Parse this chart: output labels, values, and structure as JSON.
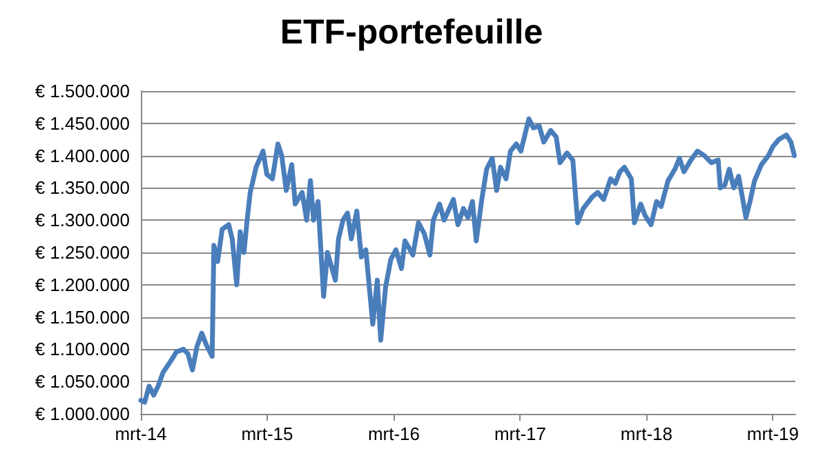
{
  "chart_data": {
    "type": "line",
    "title": "ETF-portefeuille",
    "x": [
      "2014-03-01",
      "2014-03-12",
      "2014-03-25",
      "2014-04-07",
      "2014-04-20",
      "2014-05-04",
      "2014-05-23",
      "2014-06-12",
      "2014-07-02",
      "2014-07-15",
      "2014-07-28",
      "2014-08-10",
      "2014-08-24",
      "2014-09-06",
      "2014-09-23",
      "2014-09-28",
      "2014-10-09",
      "2014-10-22",
      "2014-11-10",
      "2014-11-20",
      "2014-12-03",
      "2014-12-13",
      "2014-12-24",
      "2015-01-02",
      "2015-01-11",
      "2015-01-28",
      "2015-02-17",
      "2015-02-28",
      "2015-03-16",
      "2015-04-01",
      "2015-04-12",
      "2015-04-25",
      "2015-05-11",
      "2015-05-21",
      "2015-06-10",
      "2015-06-23",
      "2015-07-04",
      "2015-07-13",
      "2015-07-26",
      "2015-08-11",
      "2015-08-22",
      "2015-09-14",
      "2015-09-23",
      "2015-10-06",
      "2015-10-19",
      "2015-10-30",
      "2015-11-15",
      "2015-11-28",
      "2015-12-11",
      "2015-12-31",
      "2016-01-13",
      "2016-01-23",
      "2016-02-06",
      "2016-02-21",
      "2016-03-07",
      "2016-03-23",
      "2016-04-02",
      "2016-04-25",
      "2016-05-11",
      "2016-05-28",
      "2016-06-13",
      "2016-06-23",
      "2016-07-11",
      "2016-07-24",
      "2016-08-20",
      "2016-09-02",
      "2016-09-18",
      "2016-10-01",
      "2016-10-14",
      "2016-10-25",
      "2016-11-10",
      "2016-11-24",
      "2016-12-10",
      "2016-12-23",
      "2017-01-03",
      "2017-01-19",
      "2017-02-01",
      "2017-02-18",
      "2017-03-03",
      "2017-03-26",
      "2017-04-08",
      "2017-04-25",
      "2017-05-08",
      "2017-05-28",
      "2017-06-13",
      "2017-06-24",
      "2017-07-14",
      "2017-07-31",
      "2017-08-14",
      "2017-08-30",
      "2017-09-25",
      "2017-10-11",
      "2017-10-28",
      "2017-11-17",
      "2017-12-01",
      "2017-12-14",
      "2017-12-27",
      "2018-01-16",
      "2018-01-25",
      "2018-02-12",
      "2018-02-25",
      "2018-03-14",
      "2018-03-30",
      "2018-04-12",
      "2018-05-02",
      "2018-05-22",
      "2018-06-04",
      "2018-06-17",
      "2018-07-07",
      "2018-07-26",
      "2018-08-15",
      "2018-09-04",
      "2018-09-24",
      "2018-09-30",
      "2018-10-13",
      "2018-10-26",
      "2018-11-08",
      "2018-11-22",
      "2018-12-05",
      "2018-12-13",
      "2018-12-25",
      "2019-01-07",
      "2019-01-27",
      "2019-02-16",
      "2019-03-01",
      "2019-03-18",
      "2019-04-09",
      "2019-04-22",
      "2019-05-02"
    ],
    "series": [
      {
        "color": "#4a7ebb",
        "values": [
          1021000,
          1018000,
          1043000,
          1029000,
          1043000,
          1064000,
          1079000,
          1096000,
          1100000,
          1093000,
          1068000,
          1104000,
          1125000,
          1107000,
          1089000,
          1261000,
          1236000,
          1286000,
          1293000,
          1271000,
          1200000,
          1282000,
          1250000,
          1300000,
          1343000,
          1382000,
          1407000,
          1371000,
          1364000,
          1418000,
          1400000,
          1346000,
          1386000,
          1325000,
          1343000,
          1300000,
          1361000,
          1300000,
          1329000,
          1182000,
          1250000,
          1207000,
          1271000,
          1300000,
          1311000,
          1271000,
          1314000,
          1243000,
          1254000,
          1139000,
          1207000,
          1114000,
          1196000,
          1239000,
          1254000,
          1225000,
          1268000,
          1246000,
          1296000,
          1279000,
          1246000,
          1300000,
          1325000,
          1300000,
          1332000,
          1293000,
          1318000,
          1304000,
          1329000,
          1268000,
          1332000,
          1379000,
          1396000,
          1346000,
          1382000,
          1364000,
          1407000,
          1418000,
          1407000,
          1457000,
          1443000,
          1446000,
          1421000,
          1439000,
          1429000,
          1389000,
          1404000,
          1393000,
          1296000,
          1318000,
          1336000,
          1343000,
          1332000,
          1364000,
          1357000,
          1375000,
          1382000,
          1364000,
          1296000,
          1325000,
          1307000,
          1293000,
          1329000,
          1321000,
          1361000,
          1379000,
          1396000,
          1375000,
          1393000,
          1407000,
          1400000,
          1389000,
          1393000,
          1350000,
          1354000,
          1379000,
          1350000,
          1368000,
          1329000,
          1304000,
          1329000,
          1361000,
          1386000,
          1400000,
          1414000,
          1425000,
          1432000,
          1421000,
          1400000
        ]
      }
    ],
    "xlim": [
      "2014-03-01",
      "2019-05-05"
    ],
    "xticks": [
      {
        "value": "2014-03-01",
        "label": "mrt-14"
      },
      {
        "value": "2015-03-01",
        "label": "mrt-15"
      },
      {
        "value": "2016-03-01",
        "label": "mrt-16"
      },
      {
        "value": "2017-03-01",
        "label": "mrt-17"
      },
      {
        "value": "2018-03-01",
        "label": "mrt-18"
      },
      {
        "value": "2019-03-01",
        "label": "mrt-19"
      }
    ],
    "ylim": [
      1000000,
      1500000
    ],
    "yticks": [
      {
        "value": 1000000,
        "label": "€ 1.000.000"
      },
      {
        "value": 1050000,
        "label": "€ 1.050.000"
      },
      {
        "value": 1100000,
        "label": "€ 1.100.000"
      },
      {
        "value": 1150000,
        "label": "€ 1.150.000"
      },
      {
        "value": 1200000,
        "label": "€ 1.200.000"
      },
      {
        "value": 1250000,
        "label": "€ 1.250.000"
      },
      {
        "value": 1300000,
        "label": "€ 1.300.000"
      },
      {
        "value": 1350000,
        "label": "€ 1.350.000"
      },
      {
        "value": 1400000,
        "label": "€ 1.400.000"
      },
      {
        "value": 1450000,
        "label": "€ 1.450.000"
      },
      {
        "value": 1500000,
        "label": "€ 1.500.000"
      }
    ],
    "grid": "y",
    "marker": "none",
    "line_style": "solid"
  }
}
